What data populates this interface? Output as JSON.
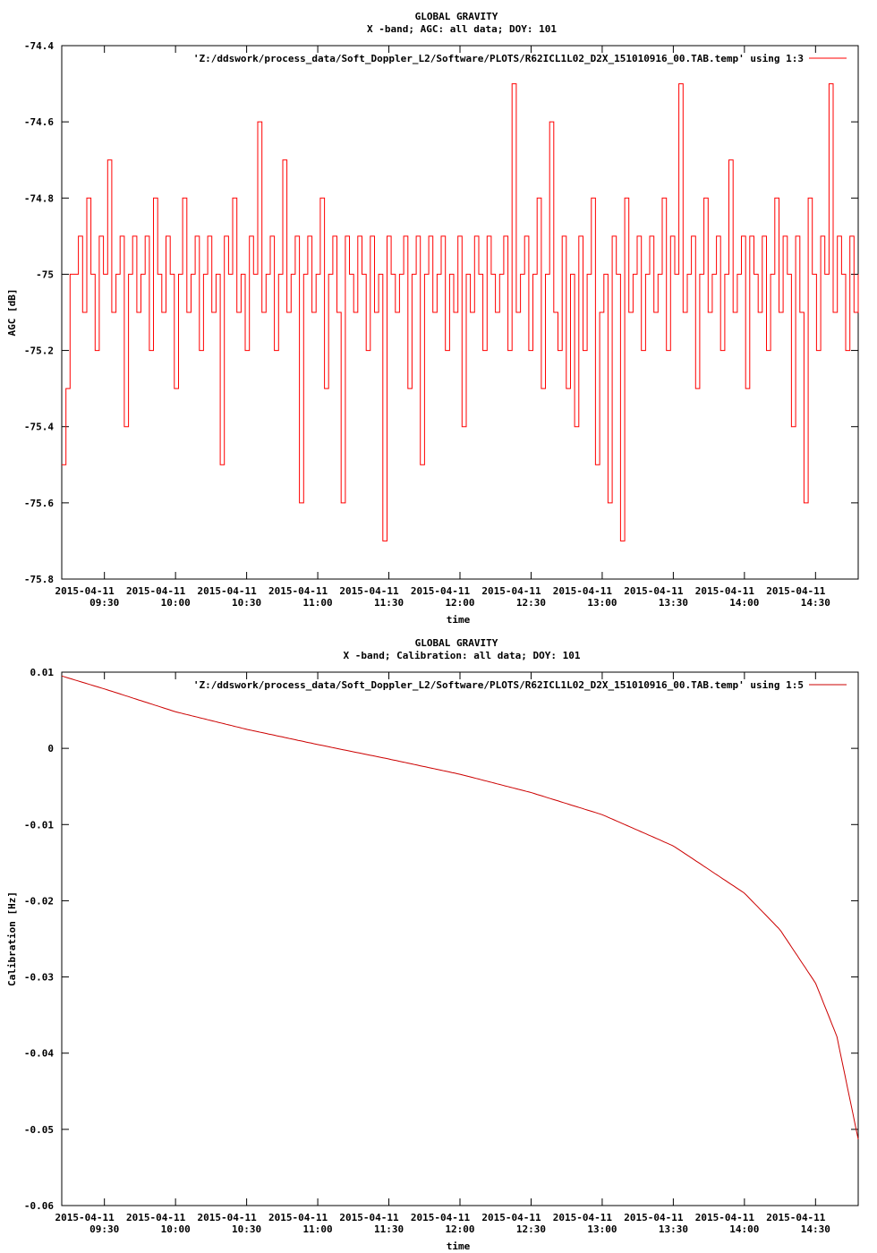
{
  "chart_data": [
    {
      "type": "line",
      "title": "GLOBAL GRAVITY",
      "subtitle": "X -band; AGC: all data; DOY: 101",
      "xlabel": "time",
      "ylabel": "AGC [dB]",
      "ylim": [
        -75.8,
        -74.4
      ],
      "yticks": [
        -74.4,
        -74.6,
        -74.8,
        -75,
        -75.2,
        -75.4,
        -75.6,
        -75.8
      ],
      "ytick_labels": [
        "-74.4",
        "-74.6",
        "-74.8",
        "-75",
        "-75.2",
        "-75.4",
        "-75.6",
        "-75.8"
      ],
      "xrange_hours": [
        9.2,
        14.8
      ],
      "xticks": [
        9.5,
        10.0,
        10.5,
        11.0,
        11.5,
        12.0,
        12.5,
        13.0,
        13.5,
        14.0,
        14.5
      ],
      "xtick_labels": [
        [
          "2015-04-11",
          "09:30"
        ],
        [
          "2015-04-11",
          "10:00"
        ],
        [
          "2015-04-11",
          "10:30"
        ],
        [
          "2015-04-11",
          "11:00"
        ],
        [
          "2015-04-11",
          "11:30"
        ],
        [
          "2015-04-11",
          "12:00"
        ],
        [
          "2015-04-11",
          "12:30"
        ],
        [
          "2015-04-11",
          "13:00"
        ],
        [
          "2015-04-11",
          "13:30"
        ],
        [
          "2015-04-11",
          "14:00"
        ],
        [
          "2015-04-11",
          "14:30"
        ]
      ],
      "legend": {
        "label": "'Z:/ddswork/process_data/Soft_Doppler_L2/Software/PLOTS/R62ICL1L02_D2X_151010916_00.TAB.temp' using 1:3",
        "placement": "top-right"
      },
      "series": [
        {
          "name": "'Z:/ddswork/process_data/Soft_Doppler_L2/Software/PLOTS/R62ICL1L02_D2X_151010916_00.TAB.temp' using 1:3",
          "color": "#ff0000",
          "x_start": 9.2,
          "x_end": 14.8,
          "values": [
            -75.5,
            -75.3,
            -75.0,
            -75.0,
            -74.9,
            -75.1,
            -74.8,
            -75.0,
            -75.2,
            -74.9,
            -75.0,
            -74.7,
            -75.1,
            -75.0,
            -74.9,
            -75.4,
            -75.0,
            -74.9,
            -75.1,
            -75.0,
            -74.9,
            -75.2,
            -74.8,
            -75.0,
            -75.1,
            -74.9,
            -75.0,
            -75.3,
            -75.0,
            -74.8,
            -75.1,
            -75.0,
            -74.9,
            -75.2,
            -75.0,
            -74.9,
            -75.1,
            -75.0,
            -75.5,
            -74.9,
            -75.0,
            -74.8,
            -75.1,
            -75.0,
            -75.2,
            -74.9,
            -75.0,
            -74.6,
            -75.1,
            -75.0,
            -74.9,
            -75.2,
            -75.0,
            -74.7,
            -75.1,
            -75.0,
            -74.9,
            -75.6,
            -75.0,
            -74.9,
            -75.1,
            -75.0,
            -74.8,
            -75.3,
            -75.0,
            -74.9,
            -75.1,
            -75.6,
            -74.9,
            -75.0,
            -75.1,
            -74.9,
            -75.0,
            -75.2,
            -74.9,
            -75.1,
            -75.0,
            -75.7,
            -74.9,
            -75.0,
            -75.1,
            -75.0,
            -74.9,
            -75.3,
            -75.0,
            -74.9,
            -75.5,
            -75.0,
            -74.9,
            -75.1,
            -75.0,
            -74.9,
            -75.2,
            -75.0,
            -75.1,
            -74.9,
            -75.4,
            -75.0,
            -75.1,
            -74.9,
            -75.0,
            -75.2,
            -74.9,
            -75.0,
            -75.1,
            -75.0,
            -74.9,
            -75.2,
            -74.5,
            -75.1,
            -75.0,
            -74.9,
            -75.2,
            -75.0,
            -74.8,
            -75.3,
            -75.0,
            -74.6,
            -75.1,
            -75.2,
            -74.9,
            -75.3,
            -75.0,
            -75.4,
            -74.9,
            -75.2,
            -75.0,
            -74.8,
            -75.5,
            -75.1,
            -75.0,
            -75.6,
            -74.9,
            -75.0,
            -75.7,
            -74.8,
            -75.1,
            -75.0,
            -74.9,
            -75.2,
            -75.0,
            -74.9,
            -75.1,
            -75.0,
            -74.8,
            -75.2,
            -74.9,
            -75.0,
            -74.5,
            -75.1,
            -75.0,
            -74.9,
            -75.3,
            -75.0,
            -74.8,
            -75.1,
            -75.0,
            -74.9,
            -75.2,
            -75.0,
            -74.7,
            -75.1,
            -75.0,
            -74.9,
            -75.3,
            -74.9,
            -75.0,
            -75.1,
            -74.9,
            -75.2,
            -75.0,
            -74.8,
            -75.1,
            -74.9,
            -75.0,
            -75.4,
            -74.9,
            -75.1,
            -75.6,
            -74.8,
            -75.0,
            -75.2,
            -74.9,
            -75.0,
            -74.5,
            -75.1,
            -74.9,
            -75.0,
            -75.2,
            -74.9,
            -75.1,
            -75.0
          ]
        }
      ]
    },
    {
      "type": "line",
      "title": "GLOBAL GRAVITY",
      "subtitle": "X -band; Calibration: all data; DOY: 101",
      "xlabel": "time",
      "ylabel": "Calibration [Hz]",
      "ylim": [
        -0.06,
        0.01
      ],
      "yticks": [
        0.01,
        0,
        -0.01,
        -0.02,
        -0.03,
        -0.04,
        -0.05,
        -0.06
      ],
      "ytick_labels": [
        "0.01",
        "0",
        "-0.01",
        "-0.02",
        "-0.03",
        "-0.04",
        "-0.05",
        "-0.06"
      ],
      "xrange_hours": [
        9.2,
        14.8
      ],
      "xticks": [
        9.5,
        10.0,
        10.5,
        11.0,
        11.5,
        12.0,
        12.5,
        13.0,
        13.5,
        14.0,
        14.5
      ],
      "xtick_labels": [
        [
          "2015-04-11",
          "09:30"
        ],
        [
          "2015-04-11",
          "10:00"
        ],
        [
          "2015-04-11",
          "10:30"
        ],
        [
          "2015-04-11",
          "11:00"
        ],
        [
          "2015-04-11",
          "11:30"
        ],
        [
          "2015-04-11",
          "12:00"
        ],
        [
          "2015-04-11",
          "12:30"
        ],
        [
          "2015-04-11",
          "13:00"
        ],
        [
          "2015-04-11",
          "13:30"
        ],
        [
          "2015-04-11",
          "14:00"
        ],
        [
          "2015-04-11",
          "14:30"
        ]
      ],
      "legend": {
        "label": "'Z:/ddswork/process_data/Soft_Doppler_L2/Software/PLOTS/R62ICL1L02_D2X_151010916_00.TAB.temp' using 1:5",
        "placement": "top-right"
      },
      "series": [
        {
          "name": "'Z:/ddswork/process_data/Soft_Doppler_L2/Software/PLOTS/R62ICL1L02_D2X_151010916_00.TAB.temp' using 1:5",
          "color": "#cc0000",
          "x": [
            9.2,
            9.5,
            10.0,
            10.5,
            11.0,
            11.5,
            12.0,
            12.5,
            13.0,
            13.5,
            14.0,
            14.25,
            14.5,
            14.65,
            14.8
          ],
          "y": [
            0.0095,
            0.0078,
            0.0048,
            0.0025,
            0.0005,
            -0.0014,
            -0.0034,
            -0.0058,
            -0.0087,
            -0.0128,
            -0.019,
            -0.0238,
            -0.0308,
            -0.0378,
            -0.0513
          ]
        }
      ]
    }
  ]
}
